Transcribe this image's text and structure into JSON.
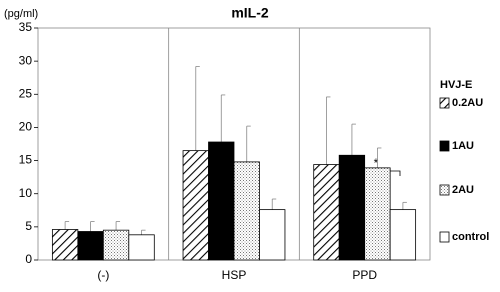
{
  "chart_data": {
    "type": "bar",
    "title": "mIL-2",
    "ylabel": "(pg/ml)",
    "categories": [
      "(-)",
      "HSP",
      "PPD"
    ],
    "legend_title": "HVJ-E",
    "series": [
      {
        "name": "0.2AU",
        "color": "#ffffff",
        "pattern": "hatch",
        "values": [
          4.6,
          16.5,
          14.4
        ],
        "errors": [
          1.2,
          12.7,
          10.2
        ]
      },
      {
        "name": "1AU",
        "color": "#000000",
        "pattern": "solid",
        "values": [
          4.3,
          17.8,
          15.8
        ],
        "errors": [
          1.5,
          7.1,
          4.7
        ]
      },
      {
        "name": "2AU",
        "color": "#ffffff",
        "pattern": "dots",
        "values": [
          4.5,
          14.8,
          13.9
        ],
        "errors": [
          1.3,
          5.4,
          3.0
        ]
      },
      {
        "name": "control",
        "color": "#ffffff",
        "pattern": "solid",
        "values": [
          3.8,
          7.6,
          7.6
        ],
        "errors": [
          0.7,
          1.6,
          1.1
        ]
      }
    ],
    "annotation": "*",
    "ylim": [
      0,
      35
    ],
    "yticks": [
      0,
      5,
      10,
      15,
      20,
      25,
      30,
      35
    ],
    "grid": false
  }
}
